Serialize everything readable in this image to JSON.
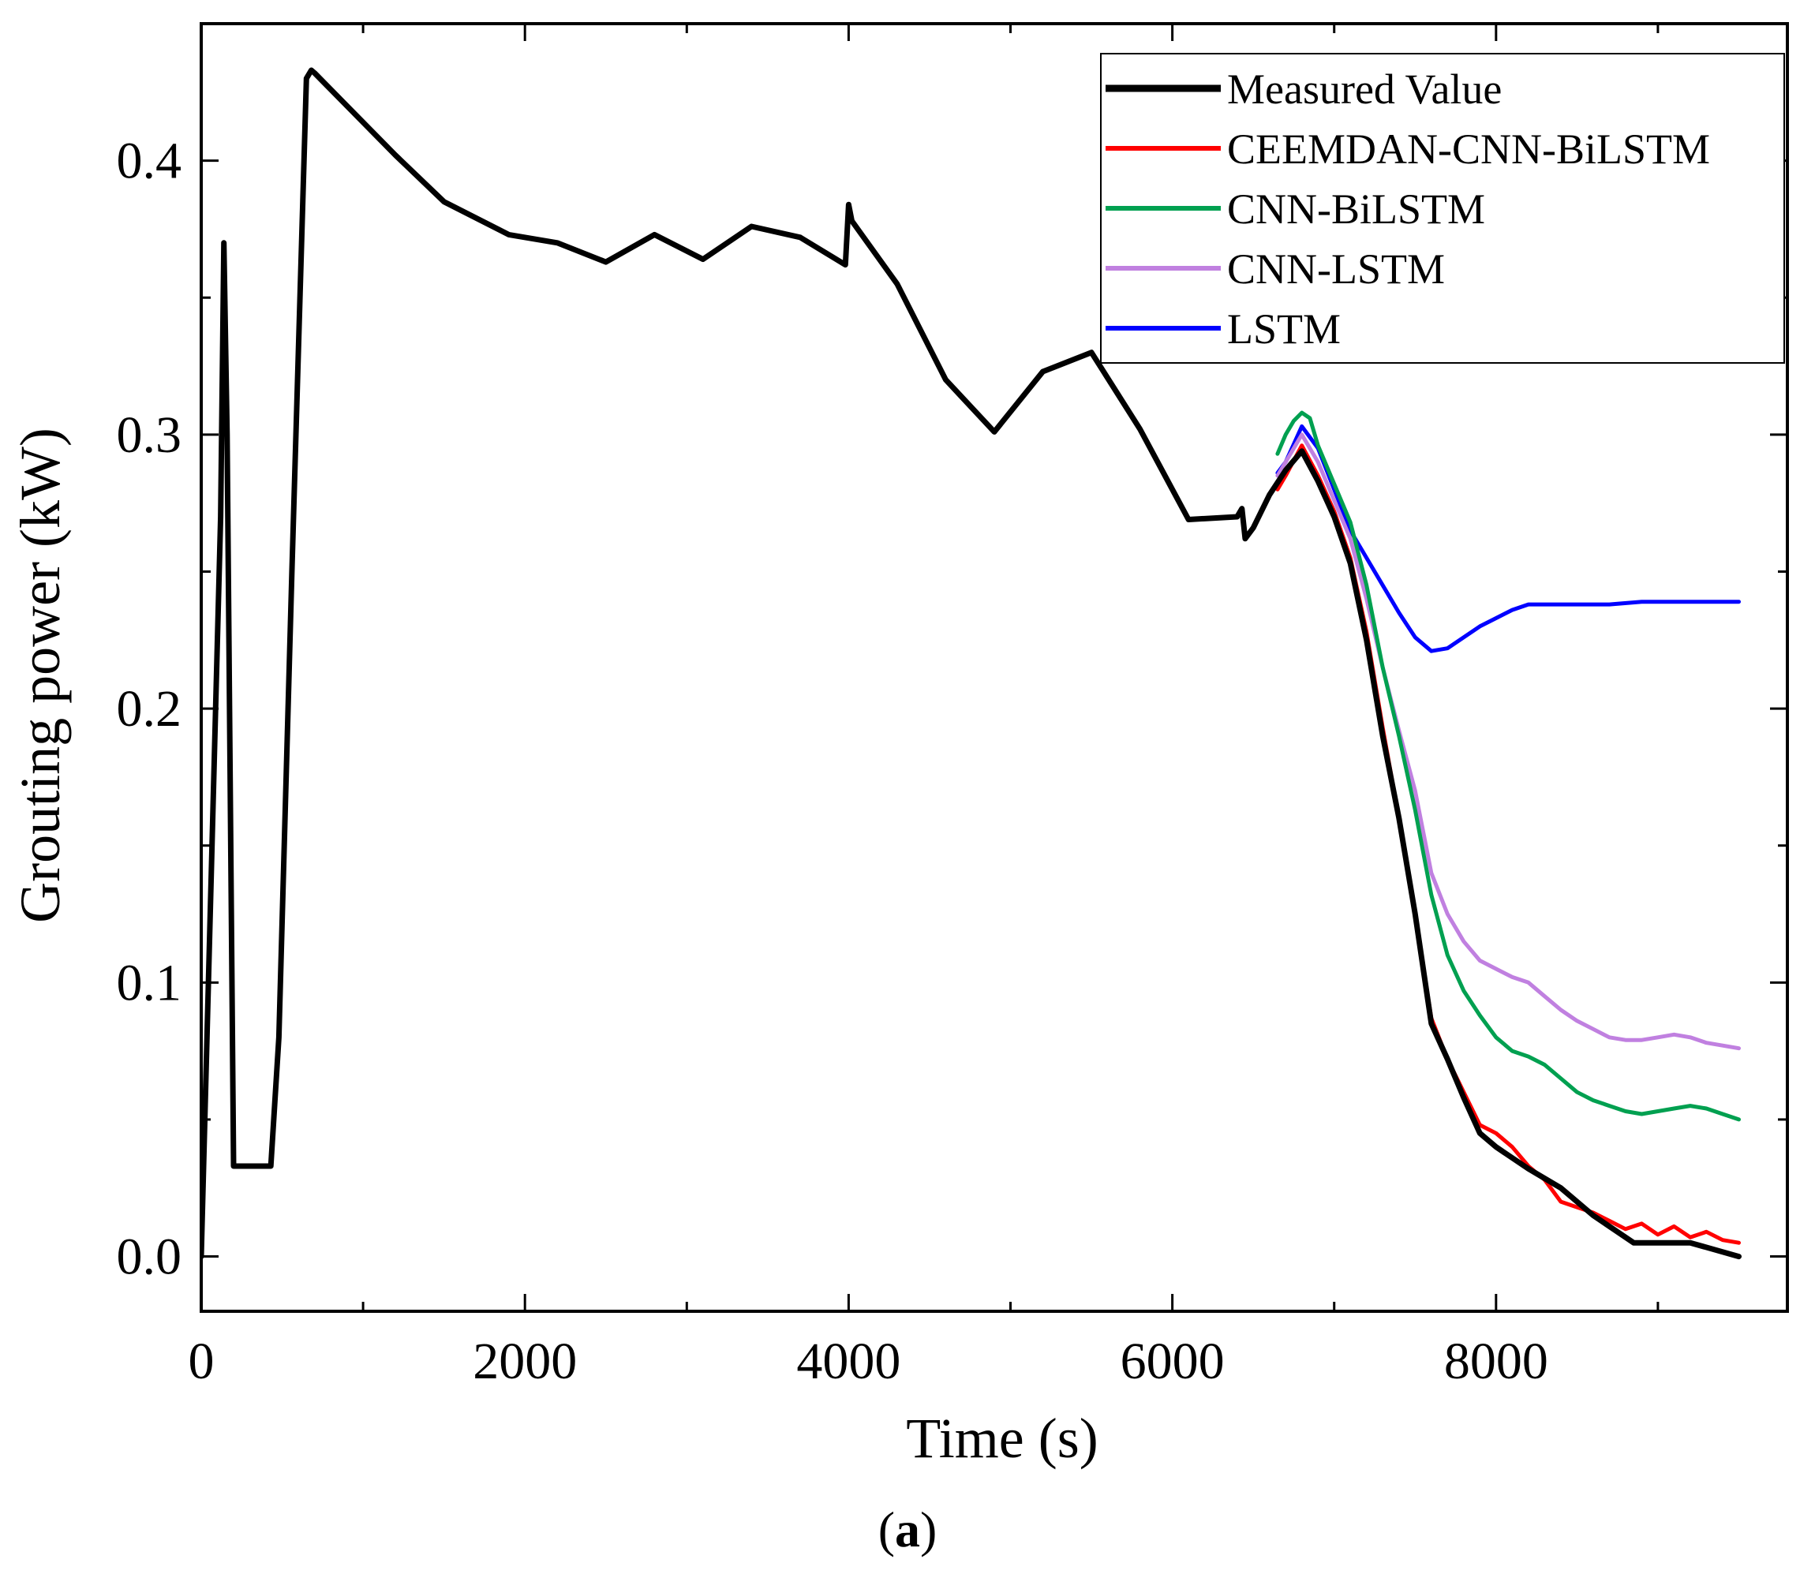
{
  "chart_data": {
    "type": "line",
    "title": "",
    "xlabel": "Time (s)",
    "ylabel": "Grouting power (kW)",
    "xlim": [
      0,
      9800
    ],
    "ylim": [
      -0.02,
      0.45
    ],
    "x_ticks": [
      0,
      2000,
      4000,
      6000,
      8000
    ],
    "x_tick_labels": [
      "0",
      "2000",
      "4000",
      "6000",
      "8000"
    ],
    "y_ticks": [
      0.0,
      0.1,
      0.2,
      0.3,
      0.4
    ],
    "y_tick_labels": [
      "0.0",
      "0.1",
      "0.2",
      "0.3",
      "0.4"
    ],
    "x_minor_ticks": [
      1000,
      3000,
      5000,
      7000,
      9000
    ],
    "y_minor_ticks": [
      0.05,
      0.15,
      0.25,
      0.35
    ],
    "grid": false,
    "legend_position": "top-right",
    "caption_parts": [
      "(",
      "a",
      ")"
    ],
    "series": [
      {
        "name": "Measured Value",
        "color": "#000000",
        "width": 7,
        "x": [
          0,
          120,
          140,
          160,
          200,
          300,
          430,
          480,
          560,
          650,
          680,
          700,
          900,
          1200,
          1500,
          1900,
          2200,
          2500,
          2800,
          3100,
          3400,
          3700,
          3980,
          4000,
          4020,
          4300,
          4600,
          4900,
          5200,
          5500,
          5800,
          6100,
          6400,
          6430,
          6450,
          6500,
          6600,
          6700,
          6800,
          6900,
          7000,
          7100,
          7200,
          7300,
          7400,
          7500,
          7600,
          7700,
          7800,
          7900,
          8000,
          8200,
          8400,
          8600,
          8850,
          9200,
          9500
        ],
        "y": [
          0.0,
          0.27,
          0.37,
          0.3,
          0.033,
          0.033,
          0.033,
          0.08,
          0.25,
          0.43,
          0.433,
          0.432,
          0.42,
          0.402,
          0.385,
          0.373,
          0.37,
          0.363,
          0.373,
          0.364,
          0.376,
          0.372,
          0.362,
          0.384,
          0.378,
          0.355,
          0.32,
          0.301,
          0.323,
          0.33,
          0.302,
          0.269,
          0.27,
          0.273,
          0.262,
          0.266,
          0.278,
          0.287,
          0.294,
          0.283,
          0.27,
          0.253,
          0.225,
          0.19,
          0.16,
          0.125,
          0.085,
          0.072,
          0.058,
          0.045,
          0.04,
          0.032,
          0.025,
          0.015,
          0.005,
          0.005,
          0.0
        ]
      },
      {
        "name": "CEEMDAN-CNN-BiLSTM",
        "color": "#ff0000",
        "width": 5,
        "x": [
          6650,
          6700,
          6800,
          6900,
          7000,
          7100,
          7200,
          7300,
          7400,
          7500,
          7600,
          7700,
          7800,
          7900,
          8000,
          8100,
          8200,
          8300,
          8400,
          8500,
          8600,
          8700,
          8800,
          8900,
          9000,
          9100,
          9200,
          9300,
          9400,
          9500
        ],
        "y": [
          0.28,
          0.285,
          0.296,
          0.285,
          0.272,
          0.255,
          0.228,
          0.193,
          0.16,
          0.125,
          0.087,
          0.072,
          0.06,
          0.048,
          0.045,
          0.04,
          0.033,
          0.028,
          0.02,
          0.018,
          0.016,
          0.013,
          0.01,
          0.012,
          0.008,
          0.011,
          0.007,
          0.009,
          0.006,
          0.005
        ]
      },
      {
        "name": "CNN-BiLSTM",
        "color": "#00a050",
        "width": 5,
        "x": [
          6650,
          6700,
          6750,
          6800,
          6850,
          6900,
          7000,
          7100,
          7200,
          7300,
          7400,
          7500,
          7600,
          7700,
          7800,
          7900,
          8000,
          8100,
          8200,
          8300,
          8400,
          8500,
          8600,
          8700,
          8800,
          8900,
          9000,
          9100,
          9200,
          9300,
          9400,
          9500
        ],
        "y": [
          0.293,
          0.3,
          0.305,
          0.308,
          0.306,
          0.296,
          0.282,
          0.268,
          0.245,
          0.215,
          0.19,
          0.163,
          0.132,
          0.11,
          0.097,
          0.088,
          0.08,
          0.075,
          0.073,
          0.07,
          0.065,
          0.06,
          0.057,
          0.055,
          0.053,
          0.052,
          0.053,
          0.054,
          0.055,
          0.054,
          0.052,
          0.05
        ]
      },
      {
        "name": "CNN-LSTM",
        "color": "#c080e0",
        "width": 5,
        "x": [
          6650,
          6700,
          6800,
          6900,
          7000,
          7100,
          7200,
          7300,
          7400,
          7500,
          7600,
          7700,
          7800,
          7900,
          8000,
          8100,
          8200,
          8300,
          8400,
          8500,
          8600,
          8700,
          8800,
          8900,
          9000,
          9100,
          9200,
          9300,
          9400,
          9500
        ],
        "y": [
          0.285,
          0.29,
          0.3,
          0.29,
          0.276,
          0.262,
          0.24,
          0.215,
          0.192,
          0.17,
          0.14,
          0.125,
          0.115,
          0.108,
          0.105,
          0.102,
          0.1,
          0.095,
          0.09,
          0.086,
          0.083,
          0.08,
          0.079,
          0.079,
          0.08,
          0.081,
          0.08,
          0.078,
          0.077,
          0.076
        ]
      },
      {
        "name": "LSTM",
        "color": "#0000ff",
        "width": 5,
        "x": [
          6650,
          6700,
          6800,
          6900,
          7000,
          7100,
          7200,
          7300,
          7400,
          7500,
          7600,
          7700,
          7800,
          7900,
          8000,
          8100,
          8200,
          8300,
          8400,
          8500,
          8700,
          8900,
          9100,
          9300,
          9500
        ],
        "y": [
          0.286,
          0.29,
          0.303,
          0.295,
          0.28,
          0.265,
          0.255,
          0.245,
          0.235,
          0.226,
          0.221,
          0.222,
          0.226,
          0.23,
          0.233,
          0.236,
          0.238,
          0.238,
          0.238,
          0.238,
          0.238,
          0.239,
          0.239,
          0.239,
          0.239
        ]
      }
    ]
  }
}
